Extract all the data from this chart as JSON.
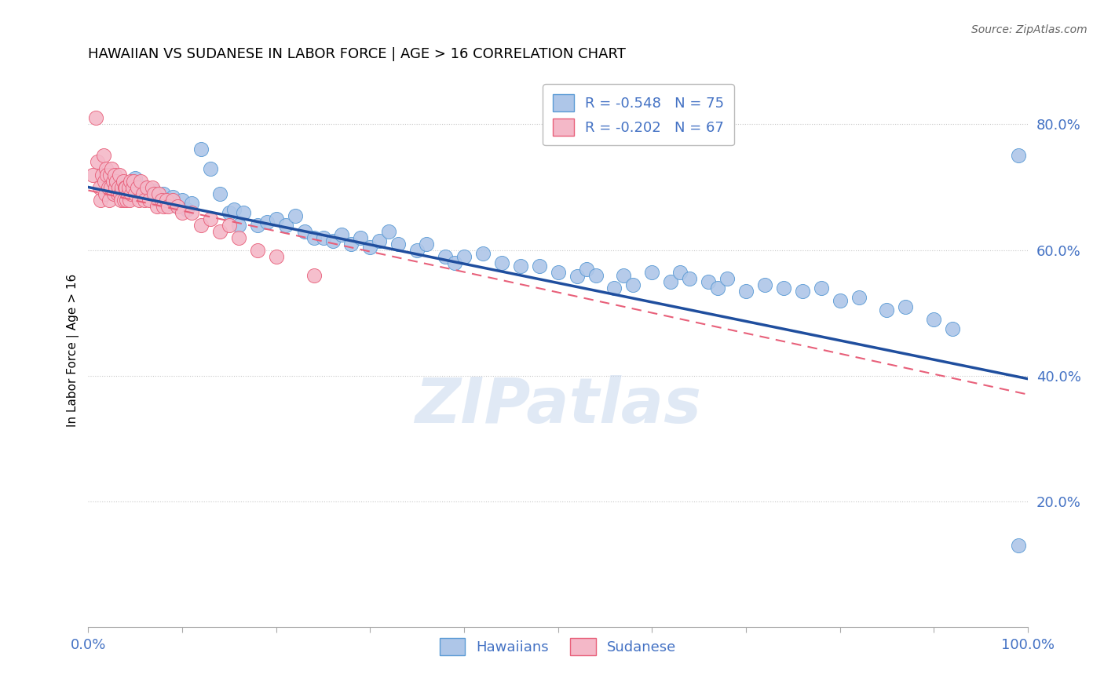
{
  "title": "HAWAIIAN VS SUDANESE IN LABOR FORCE | AGE > 16 CORRELATION CHART",
  "source_text": "Source: ZipAtlas.com",
  "ylabel": "In Labor Force | Age > 16",
  "xlim": [
    0.0,
    1.0
  ],
  "ylim": [
    0.0,
    0.88
  ],
  "yticks": [
    0.2,
    0.4,
    0.6,
    0.8
  ],
  "hawaiian_color": "#aec6e8",
  "hawaiian_edge_color": "#5b9bd5",
  "sudanese_color": "#f4b8c8",
  "sudanese_edge_color": "#e8607a",
  "trend_hawaiian_color": "#1f4e9e",
  "trend_sudanese_color": "#e8607a",
  "legend_R_hawaiian": "R = -0.548",
  "legend_N_hawaiian": "N = 75",
  "legend_R_sudanese": "R = -0.202",
  "legend_N_sudanese": "N = 67",
  "watermark": "ZIPatlas",
  "background_color": "#ffffff",
  "grid_color": "#c8c8c8",
  "tick_label_color": "#4472c4",
  "hawaiian_x": [
    0.025,
    0.04,
    0.045,
    0.05,
    0.055,
    0.06,
    0.065,
    0.07,
    0.075,
    0.08,
    0.085,
    0.09,
    0.095,
    0.1,
    0.105,
    0.11,
    0.12,
    0.13,
    0.14,
    0.15,
    0.155,
    0.16,
    0.165,
    0.18,
    0.19,
    0.2,
    0.21,
    0.22,
    0.23,
    0.24,
    0.25,
    0.26,
    0.27,
    0.28,
    0.29,
    0.3,
    0.31,
    0.32,
    0.33,
    0.35,
    0.36,
    0.38,
    0.39,
    0.4,
    0.42,
    0.44,
    0.46,
    0.48,
    0.5,
    0.52,
    0.53,
    0.54,
    0.56,
    0.57,
    0.58,
    0.6,
    0.62,
    0.63,
    0.64,
    0.66,
    0.67,
    0.68,
    0.7,
    0.72,
    0.74,
    0.76,
    0.78,
    0.8,
    0.82,
    0.85,
    0.87,
    0.9,
    0.92,
    0.99,
    0.99
  ],
  "hawaiian_y": [
    0.695,
    0.705,
    0.7,
    0.715,
    0.69,
    0.7,
    0.685,
    0.695,
    0.68,
    0.69,
    0.675,
    0.685,
    0.67,
    0.68,
    0.665,
    0.675,
    0.76,
    0.73,
    0.69,
    0.66,
    0.665,
    0.64,
    0.66,
    0.64,
    0.645,
    0.65,
    0.64,
    0.655,
    0.63,
    0.62,
    0.62,
    0.615,
    0.625,
    0.61,
    0.62,
    0.605,
    0.615,
    0.63,
    0.61,
    0.6,
    0.61,
    0.59,
    0.58,
    0.59,
    0.595,
    0.58,
    0.575,
    0.575,
    0.565,
    0.558,
    0.57,
    0.56,
    0.54,
    0.56,
    0.545,
    0.565,
    0.55,
    0.565,
    0.555,
    0.55,
    0.54,
    0.555,
    0.535,
    0.545,
    0.54,
    0.535,
    0.54,
    0.52,
    0.525,
    0.505,
    0.51,
    0.49,
    0.475,
    0.75,
    0.13
  ],
  "sudanese_x": [
    0.005,
    0.008,
    0.01,
    0.012,
    0.013,
    0.015,
    0.016,
    0.017,
    0.018,
    0.019,
    0.02,
    0.021,
    0.022,
    0.023,
    0.024,
    0.025,
    0.026,
    0.027,
    0.028,
    0.029,
    0.03,
    0.031,
    0.032,
    0.033,
    0.034,
    0.035,
    0.036,
    0.037,
    0.038,
    0.039,
    0.04,
    0.041,
    0.042,
    0.043,
    0.044,
    0.045,
    0.046,
    0.047,
    0.048,
    0.05,
    0.052,
    0.054,
    0.056,
    0.058,
    0.06,
    0.062,
    0.065,
    0.068,
    0.07,
    0.073,
    0.075,
    0.078,
    0.08,
    0.083,
    0.085,
    0.09,
    0.095,
    0.1,
    0.11,
    0.12,
    0.13,
    0.14,
    0.15,
    0.16,
    0.18,
    0.2,
    0.24
  ],
  "sudanese_y": [
    0.72,
    0.81,
    0.74,
    0.7,
    0.68,
    0.72,
    0.75,
    0.71,
    0.69,
    0.73,
    0.72,
    0.7,
    0.68,
    0.72,
    0.7,
    0.73,
    0.71,
    0.69,
    0.72,
    0.7,
    0.71,
    0.69,
    0.7,
    0.72,
    0.69,
    0.68,
    0.7,
    0.71,
    0.68,
    0.7,
    0.7,
    0.68,
    0.69,
    0.7,
    0.68,
    0.71,
    0.69,
    0.7,
    0.71,
    0.69,
    0.7,
    0.68,
    0.71,
    0.69,
    0.68,
    0.7,
    0.68,
    0.7,
    0.69,
    0.67,
    0.69,
    0.68,
    0.67,
    0.68,
    0.67,
    0.68,
    0.67,
    0.66,
    0.66,
    0.64,
    0.65,
    0.63,
    0.64,
    0.62,
    0.6,
    0.59,
    0.56
  ],
  "hawaiian_trend_x0": 0.0,
  "hawaiian_trend_y0": 0.7,
  "hawaiian_trend_x1": 1.0,
  "hawaiian_trend_y1": 0.395,
  "sudanese_trend_x0": 0.0,
  "sudanese_trend_y0": 0.695,
  "sudanese_trend_x1": 1.0,
  "sudanese_trend_y1": 0.37
}
